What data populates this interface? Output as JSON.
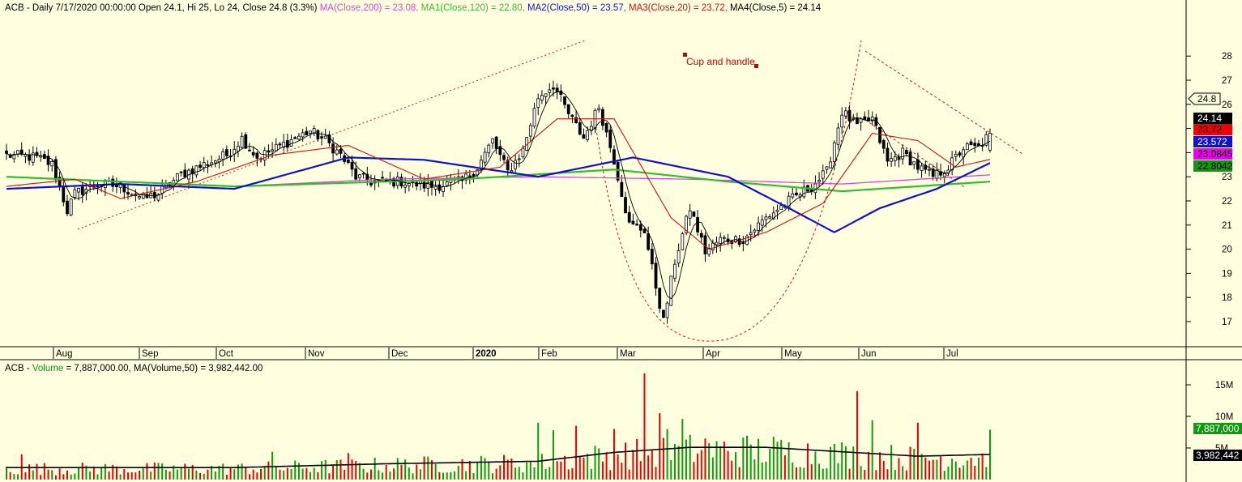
{
  "colors": {
    "background": "#ffffe0",
    "up": "#000000",
    "down": "#000000",
    "vol_up": "#119911",
    "vol_down": "#ee0000",
    "ma200": "#d24cd2",
    "ma120": "#33bb33",
    "ma50": "#1111cc",
    "ma20": "#cc1111",
    "ma5": "#000000",
    "annot": "#cc0000",
    "volma": "#000000"
  },
  "header": {
    "prefix": "ACB - Daily 7/17/2020 00:00:00 Open 24.1, Hi 25, Lo 24, Close 24.8 (3.3%)",
    "ma200": " MA(Close,200) = 23.08,",
    "ma120": " MA1(Close,120) = 22.80,",
    "ma50": " MA2(Close,50) = 23.57,",
    "ma20": " MA3(Close,20) = 23.72,",
    "ma5": " MA4(Close,5) = 24.14"
  },
  "volume_header": {
    "prefix": "ACB - ",
    "volume": "Volume",
    "rest": " = 7,887,000.00, MA(Volume,50) = 3,982,442.00"
  },
  "months": [
    {
      "label": "Aug",
      "bold": false
    },
    {
      "label": "Sep",
      "bold": false
    },
    {
      "label": "Oct",
      "bold": false
    },
    {
      "label": "Nov",
      "bold": false
    },
    {
      "label": "Dec",
      "bold": false
    },
    {
      "label": "2020",
      "bold": true
    },
    {
      "label": "Feb",
      "bold": false
    },
    {
      "label": "Mar",
      "bold": false
    },
    {
      "label": "Apr",
      "bold": false
    },
    {
      "label": "May",
      "bold": false
    },
    {
      "label": "Jun",
      "bold": false
    },
    {
      "label": "Jul",
      "bold": false
    }
  ],
  "price_ticks": [
    "17",
    "18",
    "19",
    "20",
    "21",
    "22",
    "23",
    "24",
    "25",
    "26",
    "27",
    "28"
  ],
  "volume_ticks": [
    "5M",
    "10M",
    "15M"
  ],
  "annotation": "Cup and handle",
  "price_tags": [
    {
      "label": "24.8",
      "value": 24.8,
      "bg": "#ffffe0",
      "fg": "#000000",
      "arrow": true
    },
    {
      "label": "24.14",
      "value": 24.14,
      "bg": "#000000",
      "fg": "#ffffff",
      "arrow": false
    },
    {
      "label": "23.72",
      "value": 23.72,
      "bg": "#ee0000",
      "fg": "#000000",
      "arrow": false
    },
    {
      "label": "23.572",
      "value": 23.57,
      "bg": "#1111cc",
      "fg": "#ffffff",
      "arrow": false
    },
    {
      "label": "23.0845",
      "value": 23.08,
      "bg": "#ee00ee",
      "fg": "#000000",
      "arrow": false
    },
    {
      "label": "22.8042",
      "value": 22.8,
      "bg": "#119911",
      "fg": "#000000",
      "arrow": false
    }
  ],
  "volume_tags": [
    {
      "label": "7,887,000",
      "value": 7.887,
      "bg": "#119911",
      "fg": "#ffffff"
    },
    {
      "label": "3,982,442",
      "value": 3.98,
      "bg": "#000000",
      "fg": "#ffffff"
    }
  ],
  "chart_data": {
    "type": "candlestick",
    "symbol": "ACB",
    "price_range": [
      16.2,
      28.2
    ],
    "volume_range": [
      0,
      17.5
    ],
    "volume_unit": "M",
    "anchors": [
      {
        "day": 0,
        "close": 23.9
      },
      {
        "day": 8,
        "close": 23.8
      },
      {
        "day": 12,
        "close": 23.5
      },
      {
        "day": 16,
        "close": 21.6
      },
      {
        "day": 18,
        "close": 22.3
      },
      {
        "day": 24,
        "close": 22.7
      },
      {
        "day": 30,
        "close": 22.6
      },
      {
        "day": 36,
        "close": 22.1
      },
      {
        "day": 40,
        "close": 22.3
      },
      {
        "day": 46,
        "close": 23.1
      },
      {
        "day": 52,
        "close": 23.5
      },
      {
        "day": 58,
        "close": 23.9
      },
      {
        "day": 62,
        "close": 24.6
      },
      {
        "day": 66,
        "close": 23.8
      },
      {
        "day": 70,
        "close": 24.1
      },
      {
        "day": 76,
        "close": 24.6
      },
      {
        "day": 80,
        "close": 24.9
      },
      {
        "day": 84,
        "close": 24.5
      },
      {
        "day": 88,
        "close": 23.9
      },
      {
        "day": 92,
        "close": 23.0
      },
      {
        "day": 96,
        "close": 22.8
      },
      {
        "day": 104,
        "close": 22.8
      },
      {
        "day": 112,
        "close": 22.6
      },
      {
        "day": 120,
        "close": 22.8
      },
      {
        "day": 124,
        "close": 23.4
      },
      {
        "day": 128,
        "close": 24.5
      },
      {
        "day": 132,
        "close": 23.2
      },
      {
        "day": 136,
        "close": 24.1
      },
      {
        "day": 140,
        "close": 26.3
      },
      {
        "day": 144,
        "close": 26.8
      },
      {
        "day": 148,
        "close": 25.6
      },
      {
        "day": 152,
        "close": 24.6
      },
      {
        "day": 156,
        "close": 25.9
      },
      {
        "day": 160,
        "close": 23.7
      },
      {
        "day": 164,
        "close": 21.0
      },
      {
        "day": 168,
        "close": 20.8
      },
      {
        "day": 170,
        "close": 19.2
      },
      {
        "day": 173,
        "close": 17.0
      },
      {
        "day": 176,
        "close": 19.5
      },
      {
        "day": 180,
        "close": 21.7
      },
      {
        "day": 184,
        "close": 19.9
      },
      {
        "day": 188,
        "close": 20.4
      },
      {
        "day": 194,
        "close": 20.4
      },
      {
        "day": 200,
        "close": 21.3
      },
      {
        "day": 206,
        "close": 22.0
      },
      {
        "day": 212,
        "close": 22.6
      },
      {
        "day": 216,
        "close": 23.2
      },
      {
        "day": 220,
        "close": 25.7
      },
      {
        "day": 224,
        "close": 25.1
      },
      {
        "day": 228,
        "close": 25.4
      },
      {
        "day": 232,
        "close": 23.6
      },
      {
        "day": 236,
        "close": 24.0
      },
      {
        "day": 240,
        "close": 23.4
      },
      {
        "day": 244,
        "close": 23.0
      },
      {
        "day": 248,
        "close": 23.4
      },
      {
        "day": 252,
        "close": 24.2
      },
      {
        "day": 256,
        "close": 24.2
      },
      {
        "day": 259,
        "close": 24.8
      }
    ],
    "ma_anchors": {
      "ma200": [
        {
          "day": 0,
          "value": 23.0
        },
        {
          "day": 60,
          "value": 22.6
        },
        {
          "day": 100,
          "value": 22.9
        },
        {
          "day": 140,
          "value": 23.0
        },
        {
          "day": 180,
          "value": 22.9
        },
        {
          "day": 220,
          "value": 22.7
        },
        {
          "day": 259,
          "value": 23.08
        }
      ],
      "ma120": [
        {
          "day": 0,
          "value": 23.0
        },
        {
          "day": 60,
          "value": 22.6
        },
        {
          "day": 120,
          "value": 22.9
        },
        {
          "day": 160,
          "value": 23.3
        },
        {
          "day": 190,
          "value": 22.8
        },
        {
          "day": 220,
          "value": 22.4
        },
        {
          "day": 259,
          "value": 22.8
        }
      ],
      "ma50": [
        {
          "day": 0,
          "value": 22.5
        },
        {
          "day": 30,
          "value": 22.7
        },
        {
          "day": 60,
          "value": 22.5
        },
        {
          "day": 90,
          "value": 23.8
        },
        {
          "day": 110,
          "value": 23.7
        },
        {
          "day": 140,
          "value": 23.0
        },
        {
          "day": 165,
          "value": 23.8
        },
        {
          "day": 190,
          "value": 23.0
        },
        {
          "day": 206,
          "value": 21.7
        },
        {
          "day": 218,
          "value": 20.7
        },
        {
          "day": 230,
          "value": 21.7
        },
        {
          "day": 245,
          "value": 22.5
        },
        {
          "day": 259,
          "value": 23.57
        }
      ],
      "ma20": [
        {
          "day": 0,
          "value": 22.6
        },
        {
          "day": 18,
          "value": 22.9
        },
        {
          "day": 30,
          "value": 22.1
        },
        {
          "day": 50,
          "value": 22.8
        },
        {
          "day": 70,
          "value": 23.9
        },
        {
          "day": 90,
          "value": 24.3
        },
        {
          "day": 110,
          "value": 22.9
        },
        {
          "day": 130,
          "value": 23.4
        },
        {
          "day": 145,
          "value": 25.4
        },
        {
          "day": 160,
          "value": 25.4
        },
        {
          "day": 175,
          "value": 21.3
        },
        {
          "day": 185,
          "value": 20.0
        },
        {
          "day": 200,
          "value": 20.7
        },
        {
          "day": 215,
          "value": 21.9
        },
        {
          "day": 228,
          "value": 24.8
        },
        {
          "day": 240,
          "value": 24.5
        },
        {
          "day": 250,
          "value": 23.4
        },
        {
          "day": 259,
          "value": 23.72
        }
      ]
    },
    "volume_ma_anchors": [
      {
        "day": 0,
        "value": 1.9
      },
      {
        "day": 60,
        "value": 1.9
      },
      {
        "day": 100,
        "value": 2.5
      },
      {
        "day": 140,
        "value": 2.9
      },
      {
        "day": 160,
        "value": 4.3
      },
      {
        "day": 180,
        "value": 5.1
      },
      {
        "day": 200,
        "value": 5.1
      },
      {
        "day": 220,
        "value": 4.4
      },
      {
        "day": 240,
        "value": 3.7
      },
      {
        "day": 259,
        "value": 3.98
      }
    ],
    "volume_spikes": [
      {
        "day": 4,
        "value": 4.0
      },
      {
        "day": 70,
        "value": 4.4
      },
      {
        "day": 90,
        "value": 4.2
      },
      {
        "day": 140,
        "value": 9.0
      },
      {
        "day": 144,
        "value": 7.8
      },
      {
        "day": 150,
        "value": 8.5
      },
      {
        "day": 160,
        "value": 8.0
      },
      {
        "day": 168,
        "value": 16.8
      },
      {
        "day": 172,
        "value": 10.5
      },
      {
        "day": 174,
        "value": 8.0
      },
      {
        "day": 178,
        "value": 9.6
      },
      {
        "day": 184,
        "value": 6.5
      },
      {
        "day": 224,
        "value": 14.0
      },
      {
        "day": 228,
        "value": 9.4
      },
      {
        "day": 240,
        "value": 9.0
      },
      {
        "day": 259,
        "value": 7.887
      }
    ],
    "last_bar": {
      "open": 24.1,
      "high": 25.0,
      "low": 24.0,
      "close": 24.8,
      "volume": 7.887
    },
    "total_days": 260
  }
}
